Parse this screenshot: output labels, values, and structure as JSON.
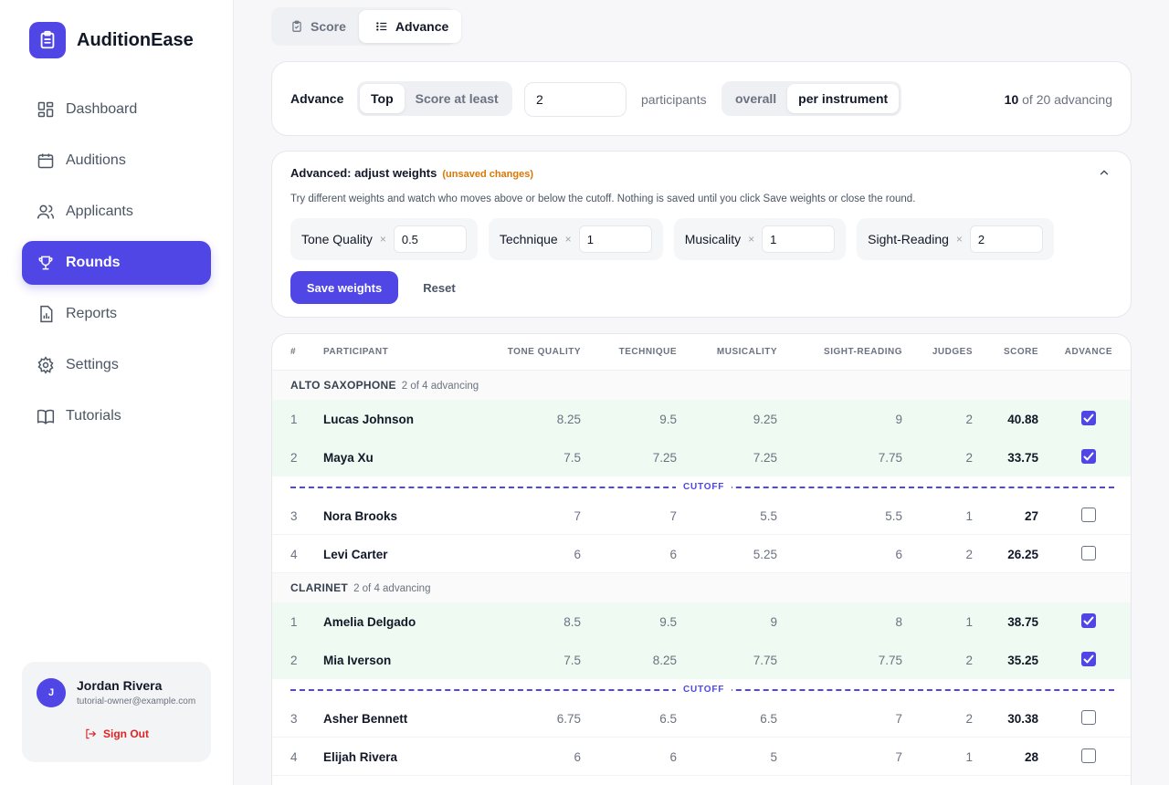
{
  "app": {
    "name": "AuditionEase"
  },
  "sidebar": {
    "items": [
      {
        "label": "Dashboard",
        "icon": "dashboard-icon",
        "active": false
      },
      {
        "label": "Auditions",
        "icon": "calendar-icon",
        "active": false
      },
      {
        "label": "Applicants",
        "icon": "users-icon",
        "active": false
      },
      {
        "label": "Rounds",
        "icon": "trophy-icon",
        "active": true
      },
      {
        "label": "Reports",
        "icon": "report-icon",
        "active": false
      },
      {
        "label": "Settings",
        "icon": "gear-icon",
        "active": false
      },
      {
        "label": "Tutorials",
        "icon": "book-icon",
        "active": false
      }
    ],
    "user": {
      "initial": "J",
      "name": "Jordan Rivera",
      "email": "tutorial-owner@example.com",
      "signout_label": "Sign Out"
    }
  },
  "tabs": [
    {
      "label": "Score",
      "active": false
    },
    {
      "label": "Advance",
      "active": true
    }
  ],
  "advance": {
    "label": "Advance",
    "mode_options": [
      {
        "label": "Top",
        "active": true
      },
      {
        "label": "Score at least",
        "active": false
      }
    ],
    "count_value": "2",
    "participants_label": "participants",
    "scope_options": [
      {
        "label": "overall",
        "active": false
      },
      {
        "label": "per instrument",
        "active": true
      }
    ],
    "advancing_num": "10",
    "advancing_rest": " of 20 advancing"
  },
  "weights": {
    "title": "Advanced: adjust weights",
    "unsaved": "(unsaved changes)",
    "description": "Try different weights and watch who moves above or below the cutoff. Nothing is saved until you click Save weights or close the round.",
    "multiplier": "×",
    "items": [
      {
        "label": "Tone Quality",
        "value": "0.5"
      },
      {
        "label": "Technique",
        "value": "1"
      },
      {
        "label": "Musicality",
        "value": "1"
      },
      {
        "label": "Sight-Reading",
        "value": "2"
      }
    ],
    "save_label": "Save weights",
    "reset_label": "Reset"
  },
  "table": {
    "headers": {
      "num": "#",
      "participant": "PARTICIPANT",
      "tone": "TONE QUALITY",
      "technique": "TECHNIQUE",
      "musicality": "MUSICALITY",
      "sight": "SIGHT-READING",
      "judges": "JUDGES",
      "score": "SCORE",
      "advance": "ADVANCE"
    },
    "cutoff_label": "CUTOFF",
    "groups": [
      {
        "name": "ALTO SAXOPHONE",
        "count": "2 of 4 advancing",
        "rows": [
          {
            "rank": "1",
            "name": "Lucas Johnson",
            "tone": "8.25",
            "technique": "9.5",
            "musicality": "9.25",
            "sight": "9",
            "judges": "2",
            "score": "40.88",
            "advance": true
          },
          {
            "rank": "2",
            "name": "Maya Xu",
            "tone": "7.5",
            "technique": "7.25",
            "musicality": "7.25",
            "sight": "7.75",
            "judges": "2",
            "score": "33.75",
            "advance": true
          },
          {
            "rank": "3",
            "name": "Nora Brooks",
            "tone": "7",
            "technique": "7",
            "musicality": "5.5",
            "sight": "5.5",
            "judges": "1",
            "score": "27",
            "advance": false
          },
          {
            "rank": "4",
            "name": "Levi Carter",
            "tone": "6",
            "technique": "6",
            "musicality": "5.25",
            "sight": "6",
            "judges": "2",
            "score": "26.25",
            "advance": false
          }
        ]
      },
      {
        "name": "CLARINET",
        "count": "2 of 4 advancing",
        "rows": [
          {
            "rank": "1",
            "name": "Amelia Delgado",
            "tone": "8.5",
            "technique": "9.5",
            "musicality": "9",
            "sight": "8",
            "judges": "1",
            "score": "38.75",
            "advance": true
          },
          {
            "rank": "2",
            "name": "Mia Iverson",
            "tone": "7.5",
            "technique": "8.25",
            "musicality": "7.75",
            "sight": "7.75",
            "judges": "2",
            "score": "35.25",
            "advance": true
          },
          {
            "rank": "3",
            "name": "Asher Bennett",
            "tone": "6.75",
            "technique": "6.5",
            "musicality": "6.5",
            "sight": "7",
            "judges": "2",
            "score": "30.38",
            "advance": false
          },
          {
            "rank": "4",
            "name": "Elijah Rivera",
            "tone": "6",
            "technique": "6",
            "musicality": "5",
            "sight": "7",
            "judges": "1",
            "score": "28",
            "advance": false
          }
        ]
      }
    ]
  }
}
